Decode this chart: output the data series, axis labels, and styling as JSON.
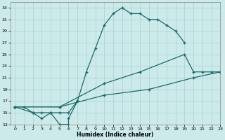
{
  "title": "",
  "xlabel": "Humidex (Indice chaleur)",
  "xlim": [
    -0.5,
    23
  ],
  "ylim": [
    13,
    34
  ],
  "xticks": [
    0,
    1,
    2,
    3,
    4,
    5,
    6,
    7,
    8,
    9,
    10,
    11,
    12,
    13,
    14,
    15,
    16,
    17,
    18,
    19,
    20,
    21,
    22,
    23
  ],
  "yticks": [
    13,
    15,
    17,
    19,
    21,
    23,
    25,
    27,
    29,
    31,
    33
  ],
  "background_color": "#cdeaea",
  "grid_color": "#aacfcf",
  "line_color": "#1a6b6b",
  "line1_x": [
    0,
    1,
    2,
    3,
    4,
    5,
    6,
    7,
    8,
    9,
    10,
    11,
    12,
    13,
    14,
    15,
    16,
    17,
    18,
    19
  ],
  "line1_y": [
    16,
    16,
    15,
    15,
    15,
    15,
    15,
    17,
    22,
    26,
    30,
    32,
    33,
    32,
    32,
    31,
    31,
    30,
    29,
    27
  ],
  "line2_x": [
    0,
    2,
    3,
    4,
    5,
    6,
    6,
    7
  ],
  "line2_y": [
    16,
    15,
    14,
    15,
    13,
    13,
    14,
    17
  ],
  "line3_x": [
    0,
    5,
    10,
    14,
    19,
    20,
    21,
    22,
    23
  ],
  "line3_y": [
    16,
    16,
    20,
    22,
    25,
    22,
    22,
    22,
    22
  ],
  "line4_x": [
    0,
    5,
    10,
    15,
    20,
    23
  ],
  "line4_y": [
    16,
    16,
    18,
    19,
    21,
    22
  ]
}
